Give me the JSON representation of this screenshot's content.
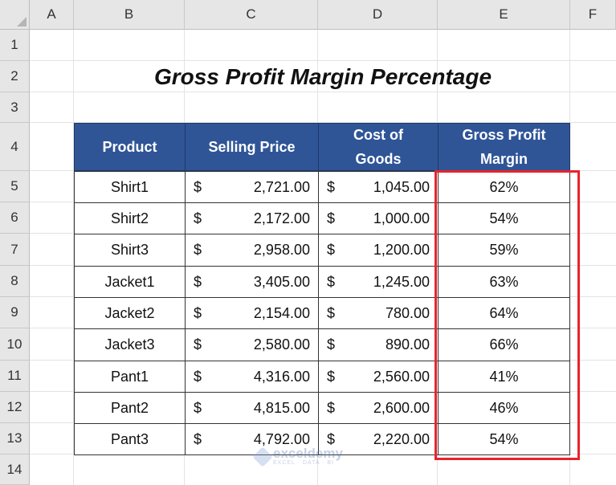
{
  "columns": [
    "A",
    "B",
    "C",
    "D",
    "E",
    "F"
  ],
  "rows": [
    "1",
    "2",
    "3",
    "4",
    "5",
    "6",
    "7",
    "8",
    "9",
    "10",
    "11",
    "12",
    "13",
    "14"
  ],
  "title": "Gross Profit Margin Percentage",
  "table": {
    "headers": {
      "product": "Product",
      "selling_price": "Selling Price",
      "cost_of_goods": [
        "Cost of",
        "Goods"
      ],
      "gross_profit_margin": [
        "Gross Profit",
        "Margin"
      ]
    },
    "currency_symbol": "$",
    "rows": [
      {
        "product": "Shirt1",
        "selling_price": "2,721.00",
        "cost": "1,045.00",
        "margin": "62%"
      },
      {
        "product": "Shirt2",
        "selling_price": "2,172.00",
        "cost": "1,000.00",
        "margin": "54%"
      },
      {
        "product": "Shirt3",
        "selling_price": "2,958.00",
        "cost": "1,200.00",
        "margin": "59%"
      },
      {
        "product": "Jacket1",
        "selling_price": "3,405.00",
        "cost": "1,245.00",
        "margin": "63%"
      },
      {
        "product": "Jacket2",
        "selling_price": "2,154.00",
        "cost": "780.00",
        "margin": "64%"
      },
      {
        "product": "Jacket3",
        "selling_price": "2,580.00",
        "cost": "890.00",
        "margin": "66%"
      },
      {
        "product": "Pant1",
        "selling_price": "4,316.00",
        "cost": "2,560.00",
        "margin": "41%"
      },
      {
        "product": "Pant2",
        "selling_price": "4,815.00",
        "cost": "2,600.00",
        "margin": "46%"
      },
      {
        "product": "Pant3",
        "selling_price": "4,792.00",
        "cost": "2,220.00",
        "margin": "54%"
      }
    ]
  },
  "watermark": {
    "name": "exceldemy",
    "sub": "EXCEL · DATA · BI"
  },
  "colors": {
    "header_fill": "#2f5597",
    "highlight": "#e8242b"
  }
}
